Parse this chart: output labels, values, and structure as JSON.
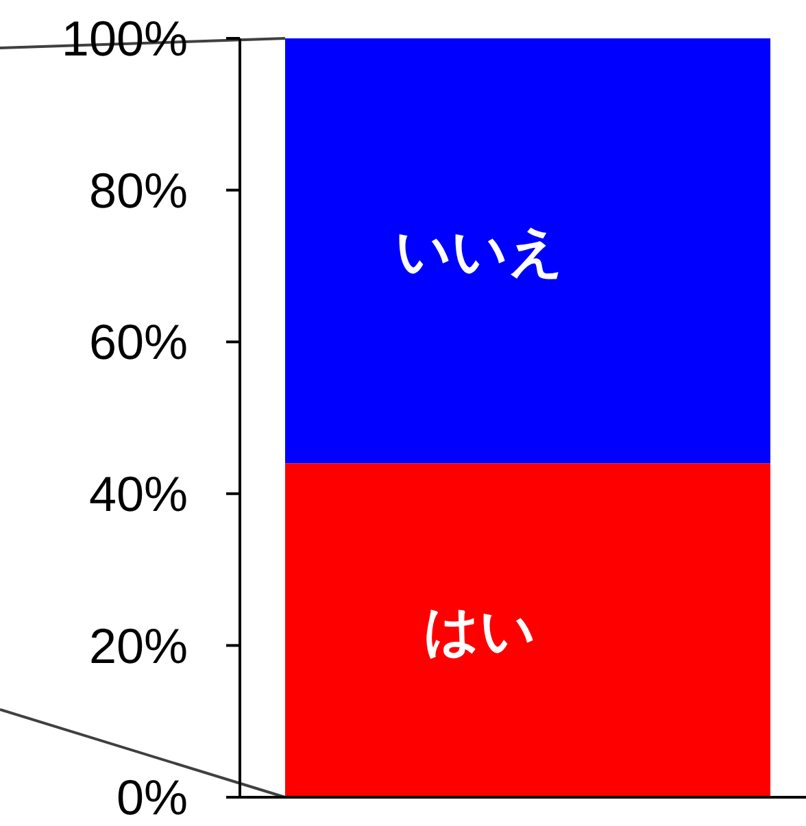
{
  "chart_data": {
    "type": "bar",
    "stacked": true,
    "categories": [
      null
    ],
    "ylim": [
      0,
      100
    ],
    "yticks": [
      {
        "value": 0,
        "label": "0%"
      },
      {
        "value": 20,
        "label": "20%"
      },
      {
        "value": 40,
        "label": "40%"
      },
      {
        "value": 60,
        "label": "60%"
      },
      {
        "value": 80,
        "label": "80%"
      },
      {
        "value": 100,
        "label": "100%"
      }
    ],
    "legend": false,
    "grid": false,
    "series": [
      {
        "name": "はい",
        "color": "#ff0000",
        "values": [
          44
        ]
      },
      {
        "name": "いいえ",
        "color": "#0000ff",
        "values": [
          56
        ]
      }
    ]
  }
}
